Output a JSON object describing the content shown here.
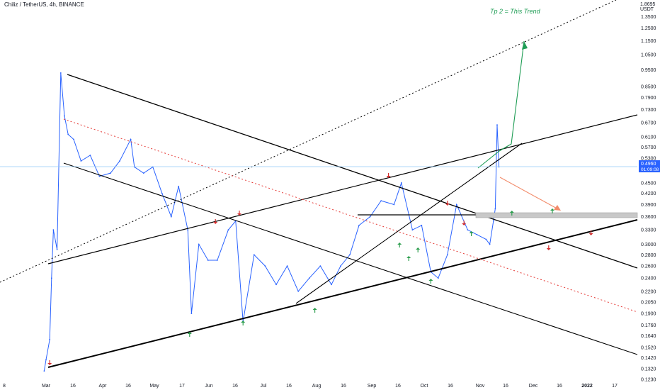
{
  "header": {
    "title": "Chiliz / TetherUS, 4h, BINANCE"
  },
  "price_axis": {
    "unit": "USDT",
    "top_label": "1.8695"
  },
  "current_price": {
    "value": "0.4960",
    "countdown": "01:09:08",
    "color": "#2962ff"
  },
  "annotation": {
    "text": "Tp 2 = This Trend",
    "color": "#1f9d55"
  },
  "chart_data": {
    "type": "line",
    "title": "Chiliz / TetherUS, 4h, BINANCE",
    "scale": "log",
    "ylim": [
      0.123,
      1.45
    ],
    "y_ticks": [
      "1.3500",
      "1.2500",
      "1.1500",
      "1.0500",
      "0.9500",
      "0.8500",
      "0.7900",
      "0.7300",
      "0.6700",
      "0.6100",
      "0.5700",
      "0.5300",
      "0.4960",
      "0.4500",
      "0.4200",
      "0.3900",
      "0.3600",
      "0.3300",
      "0.3000",
      "0.2800",
      "0.2600",
      "0.2400",
      "0.2200",
      "0.2050",
      "0.1900",
      "0.1760",
      "0.1640",
      "0.1520",
      "0.1420",
      "0.1320",
      "0.1230"
    ],
    "x_ticks": [
      "8",
      "Mar",
      "16",
      "Apr",
      "16",
      "May",
      "17",
      "Jun",
      "16",
      "Jul",
      "16",
      "Aug",
      "16",
      "Sep",
      "16",
      "Oct",
      "16",
      "Nov",
      "16",
      "Dec",
      "16",
      "2022",
      "17"
    ],
    "grid": false,
    "legend": "none",
    "series": [
      {
        "color": "#2962ff",
        "x": [
          "Feb 28",
          "Mar 1",
          "Mar 3",
          "Mar 4",
          "Mar 5",
          "Mar 7",
          "Mar 9",
          "Mar 11",
          "Mar 13",
          "Mar 16",
          "Mar 20",
          "Mar 25",
          "Mar 30",
          "Apr 5",
          "Apr 10",
          "Apr 16",
          "Apr 18",
          "Apr 23",
          "Apr 28",
          "May 3",
          "May 8",
          "May 12",
          "May 17",
          "May 19",
          "May 23",
          "May 28",
          "Jun 2",
          "Jun 8",
          "Jun 12",
          "Jun 16",
          "Jun 22",
          "Jun 28",
          "Jul 4",
          "Jul 10",
          "Jul 16",
          "Jul 22",
          "Jul 28",
          "Aug 3",
          "Aug 8",
          "Aug 13",
          "Aug 18",
          "Aug 24",
          "Aug 30",
          "Sep 6",
          "Sep 10",
          "Sep 16",
          "Sep 21",
          "Sep 26",
          "Sep 30",
          "Oct 5",
          "Oct 10",
          "Oct 16",
          "Oct 21",
          "Oct 26",
          "Oct 28",
          "Oct 30",
          "Oct 31",
          "Nov 1",
          "Nov 2"
        ],
        "y": [
          0.13,
          0.14,
          0.16,
          0.24,
          0.33,
          0.29,
          0.93,
          0.7,
          0.62,
          0.6,
          0.52,
          0.54,
          0.47,
          0.48,
          0.52,
          0.6,
          0.5,
          0.48,
          0.5,
          0.42,
          0.36,
          0.44,
          0.33,
          0.19,
          0.3,
          0.27,
          0.27,
          0.33,
          0.35,
          0.18,
          0.28,
          0.26,
          0.23,
          0.26,
          0.22,
          0.24,
          0.26,
          0.23,
          0.26,
          0.28,
          0.34,
          0.36,
          0.4,
          0.39,
          0.45,
          0.33,
          0.34,
          0.25,
          0.24,
          0.28,
          0.39,
          0.33,
          0.32,
          0.31,
          0.3,
          0.35,
          0.38,
          0.66,
          0.5
        ]
      }
    ],
    "markers": {
      "up": [
        "May 18",
        "Jun 16",
        "Jul 25",
        "Sep 9",
        "Sep 14",
        "Sep 19",
        "Sep 26",
        "Oct 18",
        "Nov 9",
        "Dec 1"
      ],
      "down": [
        "Mar 3",
        "Jun 1",
        "Jun 14",
        "Sep 3",
        "Oct 5",
        "Oct 14",
        "Nov 29",
        "Dec 22"
      ]
    }
  }
}
